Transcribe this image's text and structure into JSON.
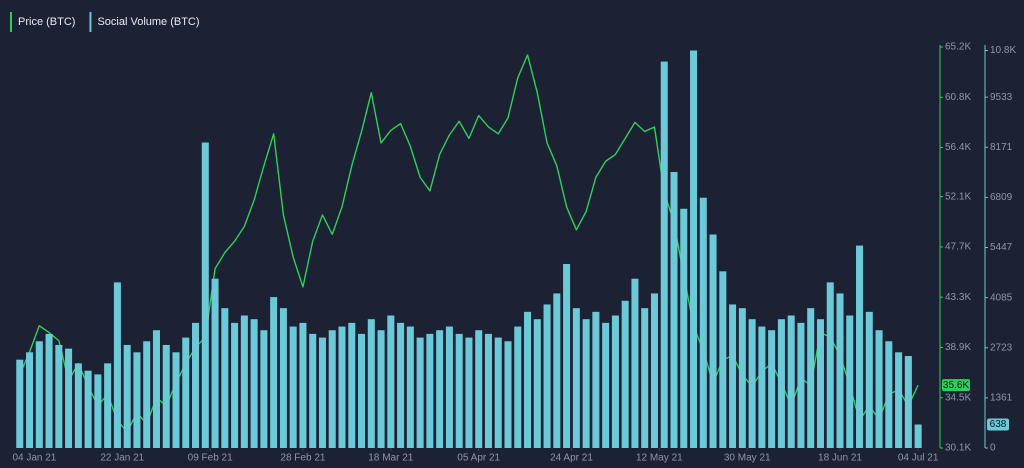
{
  "chart_data": {
    "type": "combo",
    "x": [
      "2021-01-01",
      "2021-01-03",
      "2021-01-05",
      "2021-01-07",
      "2021-01-09",
      "2021-01-11",
      "2021-01-13",
      "2021-01-15",
      "2021-01-17",
      "2021-01-19",
      "2021-01-21",
      "2021-01-23",
      "2021-01-25",
      "2021-01-27",
      "2021-01-29",
      "2021-01-31",
      "2021-02-02",
      "2021-02-04",
      "2021-02-06",
      "2021-02-08",
      "2021-02-10",
      "2021-02-12",
      "2021-02-14",
      "2021-02-16",
      "2021-02-18",
      "2021-02-20",
      "2021-02-22",
      "2021-02-24",
      "2021-02-26",
      "2021-02-28",
      "2021-03-02",
      "2021-03-04",
      "2021-03-06",
      "2021-03-08",
      "2021-03-10",
      "2021-03-12",
      "2021-03-14",
      "2021-03-16",
      "2021-03-18",
      "2021-03-20",
      "2021-03-22",
      "2021-03-24",
      "2021-03-26",
      "2021-03-28",
      "2021-03-30",
      "2021-04-01",
      "2021-04-03",
      "2021-04-05",
      "2021-04-07",
      "2021-04-09",
      "2021-04-11",
      "2021-04-13",
      "2021-04-15",
      "2021-04-17",
      "2021-04-19",
      "2021-04-21",
      "2021-04-23",
      "2021-04-25",
      "2021-04-27",
      "2021-04-29",
      "2021-05-01",
      "2021-05-03",
      "2021-05-05",
      "2021-05-07",
      "2021-05-09",
      "2021-05-11",
      "2021-05-13",
      "2021-05-15",
      "2021-05-17",
      "2021-05-19",
      "2021-05-21",
      "2021-05-23",
      "2021-05-25",
      "2021-05-27",
      "2021-05-29",
      "2021-05-31",
      "2021-06-02",
      "2021-06-04",
      "2021-06-06",
      "2021-06-08",
      "2021-06-10",
      "2021-06-12",
      "2021-06-14",
      "2021-06-16",
      "2021-06-18",
      "2021-06-20",
      "2021-06-22",
      "2021-06-24",
      "2021-06-26",
      "2021-06-28",
      "2021-06-30",
      "2021-07-02",
      "2021-07-04"
    ],
    "series": [
      {
        "name": "Price (BTC)",
        "type": "line",
        "axis": "y",
        "color": "#2fd05a",
        "current_label": "35.6K",
        "values": [
          36500,
          38500,
          40800,
          40200,
          39500,
          36000,
          37500,
          35500,
          33800,
          34800,
          32500,
          31500,
          33200,
          32200,
          34500,
          33800,
          35800,
          37500,
          38900,
          39800,
          45800,
          47200,
          48200,
          49500,
          51800,
          54800,
          57600,
          50500,
          46800,
          44200,
          48200,
          50500,
          48800,
          51200,
          54800,
          57800,
          61200,
          56800,
          57900,
          58500,
          56500,
          53800,
          52600,
          55800,
          57500,
          58700,
          57200,
          59200,
          58200,
          57600,
          59000,
          62500,
          64500,
          61200,
          56800,
          54800,
          51200,
          49200,
          50800,
          53800,
          55200,
          55800,
          57200,
          58600,
          57800,
          58200,
          52500,
          49800,
          45200,
          40800,
          38600,
          35800,
          37800,
          38200,
          36500,
          35500,
          36800,
          37500,
          35800,
          33800,
          36200,
          35600,
          40200,
          39800,
          38200,
          35600,
          32500,
          33800,
          32600,
          34800,
          35200,
          33800,
          35600
        ]
      },
      {
        "name": "Social Volume (BTC)",
        "type": "bar",
        "axis": "y2",
        "color": "#6cc9d8",
        "current_label": "638",
        "values": [
          2400,
          2600,
          2900,
          3100,
          2800,
          2700,
          2300,
          2100,
          2000,
          2300,
          4500,
          2800,
          2600,
          2900,
          3200,
          2800,
          2600,
          3000,
          3400,
          8300,
          4600,
          3800,
          3400,
          3600,
          3500,
          3200,
          4100,
          3800,
          3300,
          3400,
          3100,
          3000,
          3200,
          3300,
          3400,
          3100,
          3500,
          3200,
          3600,
          3400,
          3300,
          3000,
          3100,
          3200,
          3300,
          3100,
          3000,
          3200,
          3100,
          3000,
          2900,
          3300,
          3700,
          3500,
          3900,
          4200,
          5000,
          3800,
          3500,
          3700,
          3400,
          3600,
          4000,
          4600,
          3800,
          4200,
          10500,
          7500,
          6500,
          10800,
          6800,
          5800,
          4800,
          3900,
          3800,
          3500,
          3300,
          3200,
          3500,
          3600,
          3400,
          3800,
          3500,
          4500,
          4200,
          3600,
          5500,
          3700,
          3200,
          2900,
          2600,
          2500,
          638
        ]
      }
    ],
    "xlim": [
      "2020-12-30",
      "2021-07-05"
    ],
    "xticks": [
      {
        "value": "2021-01-04",
        "label": "04 Jan 21"
      },
      {
        "value": "2021-01-22",
        "label": "22 Jan 21"
      },
      {
        "value": "2021-02-09",
        "label": "09 Feb 21"
      },
      {
        "value": "2021-02-28",
        "label": "28 Feb 21"
      },
      {
        "value": "2021-03-18",
        "label": "18 Mar 21"
      },
      {
        "value": "2021-04-05",
        "label": "05 Apr 21"
      },
      {
        "value": "2021-04-24",
        "label": "24 Apr 21"
      },
      {
        "value": "2021-05-12",
        "label": "12 May 21"
      },
      {
        "value": "2021-05-30",
        "label": "30 May 21"
      },
      {
        "value": "2021-06-18",
        "label": "18 Jun 21"
      },
      {
        "value": "2021-07-04",
        "label": "04 Jul 21"
      }
    ],
    "ylim": [
      30100,
      65200
    ],
    "yticks": [
      {
        "value": 30100,
        "label": "30.1K"
      },
      {
        "value": 34500,
        "label": "34.5K"
      },
      {
        "value": 38900,
        "label": "38.9K"
      },
      {
        "value": 43300,
        "label": "43.3K"
      },
      {
        "value": 47700,
        "label": "47.7K"
      },
      {
        "value": 52100,
        "label": "52.1K"
      },
      {
        "value": 56400,
        "label": "56.4K"
      },
      {
        "value": 60800,
        "label": "60.8K"
      },
      {
        "value": 65200,
        "label": "65.2K"
      }
    ],
    "y2lim": [
      0,
      10895
    ],
    "y2ticks": [
      0,
      1361,
      2723,
      4085,
      5447,
      6809,
      8171,
      9533,
      {
        "value": 10800,
        "label": "10.8K"
      }
    ]
  }
}
